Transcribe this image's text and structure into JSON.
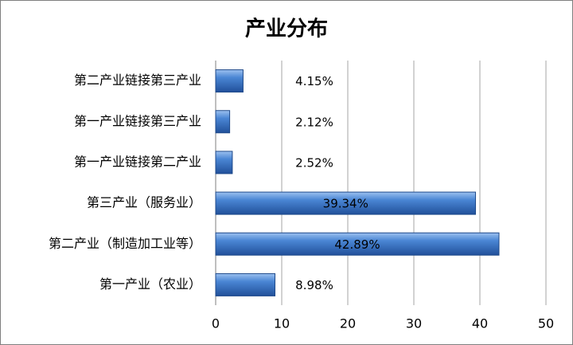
{
  "chart_data": {
    "type": "bar",
    "orientation": "horizontal",
    "title": "产业分布",
    "categories": [
      "第二产业链接第三产业",
      "第一产业链接第三产业",
      "第一产业链接第二产业",
      "第三产业（服务业）",
      "第二产业（制造加工业等）",
      "第一产业（农业）"
    ],
    "values": [
      4.15,
      2.12,
      2.52,
      39.34,
      42.89,
      8.98
    ],
    "value_labels": [
      "4.15%",
      "2.12%",
      "2.52%",
      "39.34%",
      "42.89%",
      "8.98%"
    ],
    "color": "#3a75c4",
    "xlim": [
      0,
      50
    ],
    "xticks": [
      0,
      10,
      20,
      30,
      40,
      50
    ],
    "grid": true
  }
}
